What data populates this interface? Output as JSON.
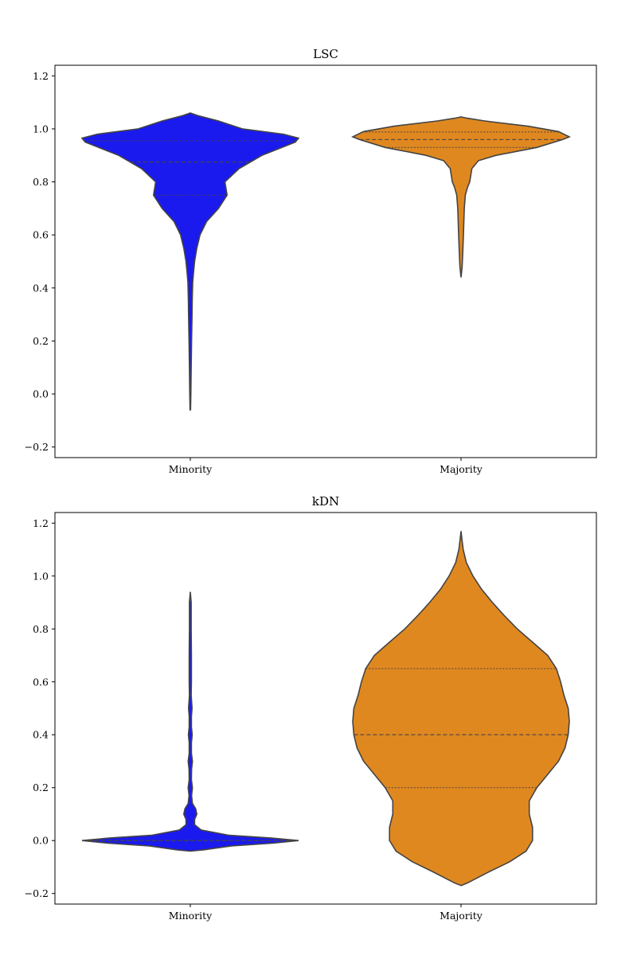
{
  "chart_data": [
    {
      "type": "violin",
      "title": "LSC",
      "categories": [
        "Minority",
        "Majority"
      ],
      "ylim": [
        -0.24,
        1.24
      ],
      "yticks": [
        -0.2,
        0.0,
        0.2,
        0.4,
        0.6,
        0.8,
        1.0,
        1.2
      ],
      "ytick_labels": [
        "−0.2",
        "0.0",
        "0.2",
        "0.4",
        "0.6",
        "0.8",
        "1.0",
        "1.2"
      ],
      "grid": false,
      "series": [
        {
          "category": "Minority",
          "color": "#1a1aef",
          "q1": 0.75,
          "median": 0.875,
          "q3": 0.955,
          "density": [
            [
              -0.06,
              0.002
            ],
            [
              0.0,
              0.005
            ],
            [
              0.1,
              0.008
            ],
            [
              0.2,
              0.012
            ],
            [
              0.3,
              0.016
            ],
            [
              0.35,
              0.018
            ],
            [
              0.42,
              0.022
            ],
            [
              0.45,
              0.028
            ],
            [
              0.5,
              0.04
            ],
            [
              0.55,
              0.06
            ],
            [
              0.6,
              0.09
            ],
            [
              0.65,
              0.15
            ],
            [
              0.7,
              0.26
            ],
            [
              0.75,
              0.34
            ],
            [
              0.8,
              0.32
            ],
            [
              0.85,
              0.45
            ],
            [
              0.9,
              0.66
            ],
            [
              0.95,
              0.97
            ],
            [
              0.965,
              1.0
            ],
            [
              0.98,
              0.86
            ],
            [
              1.0,
              0.48
            ],
            [
              1.03,
              0.26
            ],
            [
              1.05,
              0.07
            ],
            [
              1.06,
              0.0
            ]
          ]
        },
        {
          "category": "Majority",
          "color": "#e08820",
          "q1": 0.93,
          "median": 0.96,
          "q3": 0.988,
          "density": [
            [
              0.44,
              0.0
            ],
            [
              0.48,
              0.01
            ],
            [
              0.55,
              0.018
            ],
            [
              0.6,
              0.022
            ],
            [
              0.7,
              0.03
            ],
            [
              0.75,
              0.04
            ],
            [
              0.78,
              0.06
            ],
            [
              0.8,
              0.08
            ],
            [
              0.85,
              0.1
            ],
            [
              0.88,
              0.16
            ],
            [
              0.9,
              0.32
            ],
            [
              0.93,
              0.7
            ],
            [
              0.96,
              0.94
            ],
            [
              0.97,
              1.0
            ],
            [
              0.99,
              0.9
            ],
            [
              1.01,
              0.62
            ],
            [
              1.03,
              0.22
            ],
            [
              1.04,
              0.06
            ],
            [
              1.045,
              0.0
            ]
          ]
        }
      ]
    },
    {
      "type": "violin",
      "title": "kDN",
      "categories": [
        "Minority",
        "Majority"
      ],
      "ylim": [
        -0.24,
        1.24
      ],
      "yticks": [
        -0.2,
        0.0,
        0.2,
        0.4,
        0.6,
        0.8,
        1.0,
        1.2
      ],
      "ytick_labels": [
        "−0.2",
        "0.0",
        "0.2",
        "0.4",
        "0.6",
        "0.8",
        "1.0",
        "1.2"
      ],
      "grid": false,
      "series": [
        {
          "category": "Minority",
          "color": "#1a1aef",
          "q1": 0.0,
          "median": 0.0,
          "q3": 0.0,
          "density": [
            [
              -0.04,
              0.0
            ],
            [
              -0.035,
              0.12
            ],
            [
              -0.02,
              0.38
            ],
            [
              -0.01,
              0.76
            ],
            [
              0.0,
              1.0
            ],
            [
              0.01,
              0.74
            ],
            [
              0.02,
              0.36
            ],
            [
              0.04,
              0.1
            ],
            [
              0.06,
              0.04
            ],
            [
              0.08,
              0.04
            ],
            [
              0.1,
              0.06
            ],
            [
              0.12,
              0.05
            ],
            [
              0.14,
              0.02
            ],
            [
              0.17,
              0.012
            ],
            [
              0.2,
              0.02
            ],
            [
              0.23,
              0.01
            ],
            [
              0.27,
              0.012
            ],
            [
              0.3,
              0.02
            ],
            [
              0.33,
              0.01
            ],
            [
              0.37,
              0.01
            ],
            [
              0.4,
              0.018
            ],
            [
              0.43,
              0.01
            ],
            [
              0.47,
              0.01
            ],
            [
              0.5,
              0.016
            ],
            [
              0.55,
              0.008
            ],
            [
              0.6,
              0.01
            ],
            [
              0.7,
              0.01
            ],
            [
              0.8,
              0.008
            ],
            [
              0.9,
              0.008
            ],
            [
              0.94,
              0.0
            ]
          ]
        },
        {
          "category": "Majority",
          "color": "#e08820",
          "q1": 0.2,
          "median": 0.4,
          "q3": 0.65,
          "density": [
            [
              -0.17,
              0.0
            ],
            [
              -0.16,
              0.06
            ],
            [
              -0.12,
              0.25
            ],
            [
              -0.08,
              0.45
            ],
            [
              -0.04,
              0.6
            ],
            [
              0.0,
              0.66
            ],
            [
              0.05,
              0.66
            ],
            [
              0.1,
              0.63
            ],
            [
              0.15,
              0.63
            ],
            [
              0.2,
              0.7
            ],
            [
              0.25,
              0.8
            ],
            [
              0.3,
              0.9
            ],
            [
              0.35,
              0.96
            ],
            [
              0.4,
              0.99
            ],
            [
              0.45,
              1.0
            ],
            [
              0.5,
              0.99
            ],
            [
              0.55,
              0.95
            ],
            [
              0.6,
              0.92
            ],
            [
              0.65,
              0.88
            ],
            [
              0.7,
              0.8
            ],
            [
              0.75,
              0.66
            ],
            [
              0.8,
              0.52
            ],
            [
              0.85,
              0.4
            ],
            [
              0.9,
              0.29
            ],
            [
              0.95,
              0.19
            ],
            [
              1.0,
              0.11
            ],
            [
              1.05,
              0.05
            ],
            [
              1.1,
              0.02
            ],
            [
              1.15,
              0.005
            ],
            [
              1.17,
              0.0
            ]
          ]
        }
      ]
    }
  ]
}
